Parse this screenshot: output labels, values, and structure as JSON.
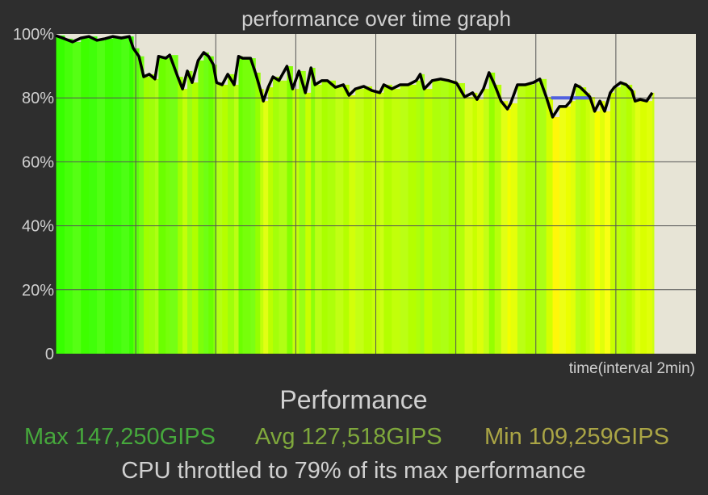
{
  "chart_data": {
    "type": "area",
    "title": "performance over time graph",
    "xlabel": "time(interval 2min)",
    "ylabel": "",
    "xlim": [
      0,
      16
    ],
    "ylim": [
      0,
      100
    ],
    "x_grid_interval_min": 2,
    "grid": true,
    "yticks": [
      "0",
      "20%",
      "40%",
      "60%",
      "80%",
      "100%"
    ],
    "ytick_values": [
      0,
      20,
      40,
      60,
      80,
      100
    ],
    "series": [
      {
        "name": "performance %",
        "x": [
          0,
          0.22,
          0.42,
          0.63,
          0.83,
          1.03,
          1.23,
          1.43,
          1.64,
          1.84,
          1.94,
          2.08,
          2.2,
          2.34,
          2.48,
          2.57,
          2.75,
          2.85,
          3.05,
          3.17,
          3.29,
          3.41,
          3.56,
          3.7,
          3.82,
          3.94,
          4.02,
          4.16,
          4.3,
          4.46,
          4.57,
          4.67,
          4.87,
          4.99,
          5.11,
          5.19,
          5.31,
          5.43,
          5.58,
          5.78,
          5.92,
          6.08,
          6.24,
          6.38,
          6.48,
          6.65,
          6.79,
          6.99,
          7.19,
          7.33,
          7.49,
          7.7,
          7.9,
          8.1,
          8.2,
          8.4,
          8.61,
          8.81,
          9.01,
          9.11,
          9.21,
          9.41,
          9.62,
          9.82,
          10.02,
          10.22,
          10.42,
          10.53,
          10.69,
          10.83,
          10.97,
          11.13,
          11.29,
          11.37,
          11.54,
          11.74,
          11.94,
          12.1,
          12.26,
          12.42,
          12.59,
          12.75,
          12.87,
          12.99,
          13.11,
          13.25,
          13.35,
          13.47,
          13.6,
          13.72,
          13.86,
          13.96,
          14.12,
          14.26,
          14.4,
          14.48,
          14.61,
          14.77,
          14.91
        ],
        "values": [
          99.5,
          98.5,
          97.5,
          98.7,
          99.2,
          98.0,
          98.5,
          99.2,
          98.7,
          99.2,
          95.5,
          93.0,
          86.6,
          87.4,
          85.9,
          93.0,
          92.4,
          93.4,
          86.6,
          82.8,
          88.4,
          84.8,
          91.7,
          94.2,
          93.0,
          90.4,
          84.8,
          84.1,
          87.4,
          84.1,
          93.0,
          92.4,
          92.4,
          87.9,
          82.8,
          79.0,
          83.3,
          86.6,
          85.4,
          89.9,
          82.8,
          88.4,
          81.6,
          89.4,
          84.1,
          85.4,
          85.4,
          83.3,
          84.1,
          80.8,
          82.8,
          83.6,
          82.3,
          81.6,
          84.1,
          82.8,
          84.1,
          84.1,
          85.4,
          87.4,
          82.8,
          85.4,
          85.9,
          85.4,
          84.6,
          80.3,
          81.6,
          79.5,
          82.8,
          87.9,
          84.1,
          79.0,
          76.5,
          78.3,
          84.1,
          84.1,
          84.8,
          85.9,
          80.3,
          74.0,
          77.3,
          77.3,
          79.0,
          84.1,
          83.3,
          81.6,
          80.3,
          75.8,
          79.0,
          75.8,
          81.6,
          83.3,
          84.8,
          84.1,
          82.3,
          79.0,
          79.5,
          79.0,
          81.6
        ]
      }
    ],
    "marker_segment": {
      "x": [
        12.38,
        13.35
      ],
      "y": 80,
      "color": "#5060e0"
    },
    "colors": {
      "plot_bg": "#e7e4d6",
      "line": "#000000",
      "grid": "#555555"
    }
  },
  "summary": {
    "heading": "Performance",
    "max": "Max 147,250GIPS",
    "avg": "Avg 127,518GIPS",
    "min": "Min 109,259GIPS",
    "throttle": "CPU throttled to 79% of its max performance",
    "colors": {
      "max": "#46a83c",
      "avg": "#7fa83c",
      "min": "#aaa545"
    }
  }
}
